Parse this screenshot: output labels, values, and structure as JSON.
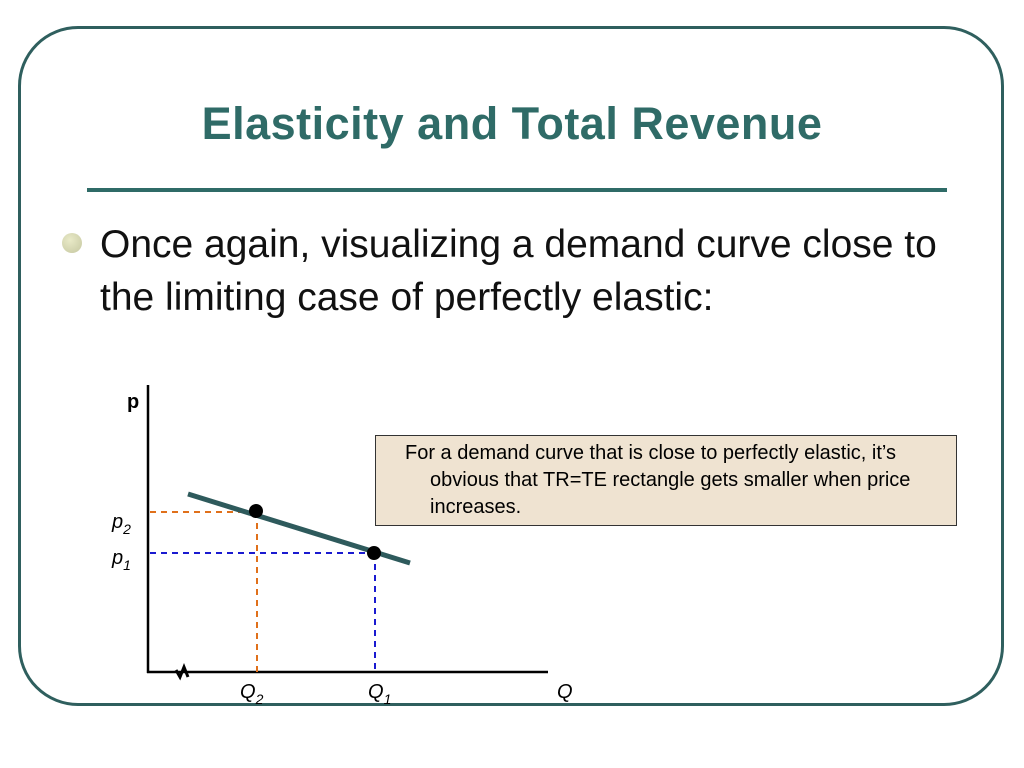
{
  "slide": {
    "title": "Elasticity and Total Revenue",
    "bullet": "Once again, visualizing a demand curve close to the limiting case of perfectly elastic:",
    "note": "For a demand curve that is close to perfectly elastic, it’s obvious that TR=TE rectangle gets smaller when price increases."
  },
  "diagram": {
    "y_axis_label": "p",
    "x_axis_label": "Q",
    "price_labels": [
      {
        "base": "p",
        "sub": "2"
      },
      {
        "base": "p",
        "sub": "1"
      }
    ],
    "quantity_labels": [
      {
        "base": "Q",
        "sub": "2"
      },
      {
        "base": "Q",
        "sub": "1"
      }
    ],
    "colors": {
      "demand_curve": "#2e5a5c",
      "p2_guide": "#e0701a",
      "p1_guide": "#1a1ad0",
      "axis": "#000000"
    }
  }
}
